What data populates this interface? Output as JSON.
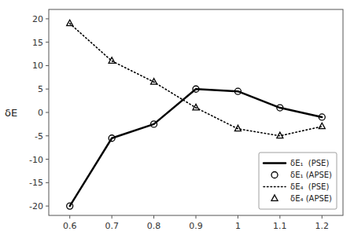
{
  "chart_data": {
    "type": "line",
    "y_label": "δE",
    "x": [
      0.6,
      0.7,
      0.8,
      0.9,
      1,
      1.1,
      1.2
    ],
    "series": [
      {
        "name": "δE₁  (PSE)",
        "color": "black",
        "type": "line",
        "line_style": "solid",
        "values": [
          -20,
          -5.5,
          -2.5,
          5.0,
          4.5,
          1.0,
          -1.0
        ]
      },
      {
        "name": "δE₁ (APSE)",
        "color": "black",
        "type": "scatter",
        "marker": "circle",
        "values": [
          -20,
          -5.5,
          -2.5,
          5.0,
          4.5,
          1.0,
          -1.0
        ]
      },
      {
        "name": "δE₄  (PSE)",
        "color": "black",
        "type": "line",
        "line_style": "dotted",
        "values": [
          19.0,
          11.0,
          6.5,
          1.0,
          -3.5,
          -5.0,
          -3.0
        ]
      },
      {
        "name": "δE₄ (APSE)",
        "color": "black",
        "type": "scatter",
        "marker": "triangle",
        "values": [
          19.0,
          11.0,
          6.5,
          1.0,
          -3.5,
          -5.0,
          -3.0
        ]
      }
    ],
    "xlim": [
      0.55,
      1.25
    ],
    "ylim": [
      -22,
      22
    ],
    "xticks": [
      0.6,
      0.7,
      0.8,
      0.9,
      1,
      1.1,
      1.2
    ],
    "yticks": [
      -20,
      -15,
      -10,
      -5,
      0,
      5,
      10,
      15,
      20
    ],
    "grid": false,
    "legend": "lower right"
  }
}
